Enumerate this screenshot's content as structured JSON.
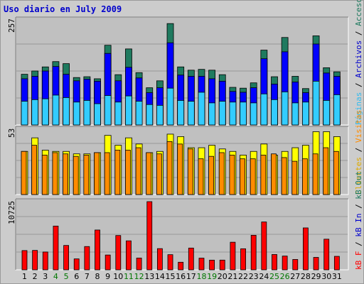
{
  "title": "Uso diario en July 2009",
  "colors": {
    "visitas": "#ffa500",
    "paginas": "#4477dd",
    "solicitudes": "#00b0ff",
    "accesos": "#1f7a5f",
    "archivos": "#0000ff",
    "paginas_dark": "#33ccff",
    "clientes": "#ffff00",
    "visitas_dark": "#ff8c00",
    "kb": "#ff0000",
    "weekend_label": "#007700",
    "weekday_label": "#000000",
    "panel_bg": "#c0c0c0",
    "outer_bg": "#cccccc"
  },
  "chart_data": [
    {
      "type": "bar",
      "title": "",
      "axis_max_label": "257",
      "ylim": [
        0,
        257
      ],
      "categories": [
        "1",
        "2",
        "3",
        "4",
        "5",
        "6",
        "7",
        "8",
        "9",
        "10",
        "11",
        "12",
        "13",
        "14",
        "15",
        "16",
        "17",
        "18",
        "19",
        "20",
        "21",
        "22",
        "23",
        "24",
        "25",
        "26",
        "27",
        "28",
        "29",
        "30",
        "31"
      ],
      "series": [
        {
          "name": "Accesos",
          "values": [
            124,
            132,
            142,
            155,
            150,
            116,
            118,
            113,
            195,
            123,
            186,
            128,
            91,
            108,
            248,
            142,
            134,
            136,
            134,
            123,
            92,
            90,
            103,
            183,
            118,
            214,
            119,
            89,
            218,
            140,
            130
          ]
        },
        {
          "name": "Archivos",
          "values": [
            113,
            119,
            132,
            143,
            124,
            108,
            112,
            107,
            175,
            108,
            141,
            115,
            79,
            91,
            201,
            122,
            119,
            119,
            113,
            107,
            82,
            80,
            91,
            162,
            100,
            179,
            105,
            79,
            198,
            127,
            119
          ]
        },
        {
          "name": "Páginas",
          "values": [
            58,
            62,
            64,
            73,
            67,
            56,
            60,
            52,
            72,
            56,
            71,
            58,
            50,
            48,
            90,
            60,
            58,
            80,
            54,
            58,
            56,
            56,
            54,
            76,
            62,
            81,
            54,
            56,
            107,
            60,
            74
          ]
        }
      ]
    },
    {
      "type": "bar",
      "title": "",
      "axis_max_label": "53",
      "ylim": [
        0,
        53
      ],
      "categories": [
        "1",
        "2",
        "3",
        "4",
        "5",
        "6",
        "7",
        "8",
        "9",
        "10",
        "11",
        "12",
        "13",
        "14",
        "15",
        "16",
        "17",
        "18",
        "19",
        "20",
        "21",
        "22",
        "23",
        "24",
        "25",
        "26",
        "27",
        "28",
        "29",
        "30",
        "31"
      ],
      "series": [
        {
          "name": "Clientes",
          "values": [
            35,
            46,
            36,
            35,
            35,
            33,
            33,
            34,
            48,
            40,
            46,
            41,
            34,
            35,
            49,
            47,
            38,
            38,
            40,
            37,
            35,
            32,
            35,
            41,
            32,
            35,
            38,
            40,
            51,
            51,
            47
          ]
        },
        {
          "name": "Visitas",
          "values": [
            35,
            40,
            32,
            34,
            33,
            31,
            32,
            34,
            34,
            36,
            36,
            38,
            34,
            33,
            43,
            41,
            37,
            29,
            31,
            34,
            32,
            29,
            29,
            32,
            33,
            30,
            27,
            29,
            33,
            38,
            35
          ]
        }
      ]
    },
    {
      "type": "bar",
      "title": "",
      "axis_max_label": "10725",
      "ylim": [
        0,
        10725
      ],
      "categories": [
        "1",
        "2",
        "3",
        "4",
        "5",
        "6",
        "7",
        "8",
        "9",
        "10",
        "11",
        "12",
        "13",
        "14",
        "15",
        "16",
        "17",
        "18",
        "19",
        "20",
        "21",
        "22",
        "23",
        "24",
        "25",
        "26",
        "27",
        "28",
        "29",
        "30",
        "31"
      ],
      "series": [
        {
          "name": "kB F",
          "values": [
            3028,
            3052,
            2802,
            6883,
            3834,
            1718,
            3660,
            6262,
            2330,
            5396,
            4558,
            1852,
            10725,
            3334,
            2384,
            1194,
            3423,
            1836,
            1523,
            1528,
            4341,
            3312,
            5433,
            7527,
            2408,
            2162,
            1630,
            6594,
            1954,
            4820,
            2119
          ]
        }
      ]
    }
  ],
  "legends": {
    "top": [
      "Páginas",
      "Archivos",
      "Accesos"
    ],
    "middle": [
      "Clientes",
      "Visitas"
    ],
    "bottom": [
      "kB F",
      "kB In",
      "kB Out"
    ]
  },
  "weekend_days": [
    "4",
    "5",
    "11",
    "12",
    "18",
    "19",
    "25",
    "26"
  ]
}
